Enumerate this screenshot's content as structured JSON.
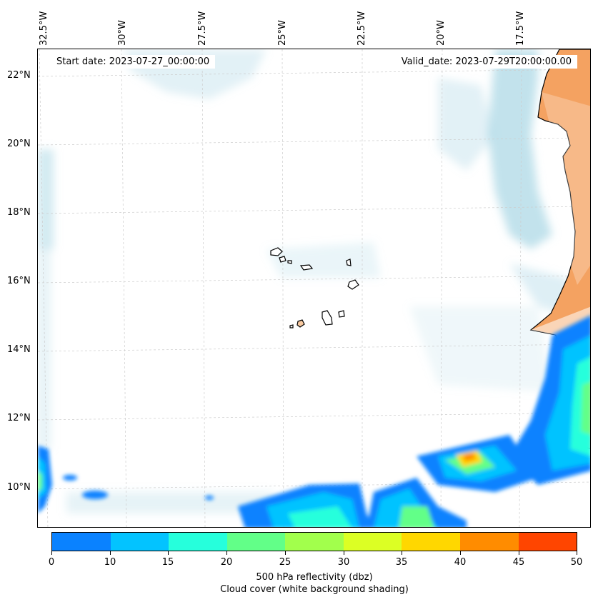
{
  "map": {
    "start_date": "Start date: 2023-07-27_00:00:00",
    "valid_date": "Valid_date: 2023-07-29T20:00:00.00",
    "longitude_labels": [
      "32.5°W",
      "30°W",
      "27.5°W",
      "25°W",
      "22.5°W",
      "20°W",
      "17.5°W"
    ],
    "latitude_labels": [
      "22°N",
      "20°N",
      "18°N",
      "16°N",
      "14°N",
      "12°N",
      "10°N"
    ],
    "land_color": "#f4a261",
    "cloud_color": "#add8e6"
  },
  "colorbar": {
    "ticks": [
      "0",
      "10",
      "15",
      "20",
      "25",
      "30",
      "35",
      "40",
      "45",
      "50"
    ],
    "colors": [
      "#0a82ff",
      "#03c3ff",
      "#26ffdc",
      "#62ff88",
      "#a2ff4c",
      "#dcff24",
      "#ffd700",
      "#ff8c00",
      "#ff4500"
    ],
    "title_line1": "500 hPa reflectivity (dbz)",
    "title_line2": "Cloud cover (white background shading)"
  }
}
